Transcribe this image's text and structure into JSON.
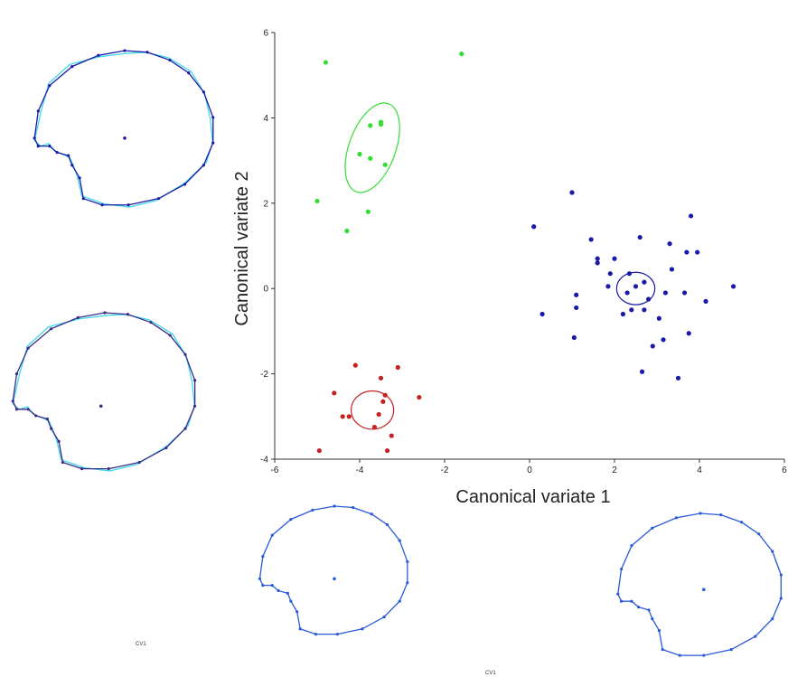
{
  "chart_data": {
    "type": "scatter",
    "xlabel": "Canonical variate 1",
    "ylabel": "Canonical variate 2",
    "xlim": [
      -6,
      6
    ],
    "ylim": [
      -4,
      6
    ],
    "x_ticks": [
      -6,
      -4,
      -2,
      0,
      2,
      4,
      6
    ],
    "y_ticks": [
      -4,
      -2,
      0,
      2,
      4,
      6
    ],
    "grid": false,
    "series": [
      {
        "color": "#33dd33",
        "points": [
          [
            -4.8,
            5.3
          ],
          [
            -1.6,
            5.5
          ],
          [
            -3.5,
            3.9
          ],
          [
            -3.5,
            3.85
          ],
          [
            -3.75,
            3.82
          ],
          [
            -4.0,
            3.15
          ],
          [
            -3.75,
            3.05
          ],
          [
            -3.4,
            2.9
          ],
          [
            -5.0,
            2.05
          ],
          [
            -3.8,
            1.8
          ],
          [
            -4.3,
            1.35
          ]
        ],
        "ellipse": {
          "center": [
            -3.7,
            3.3
          ],
          "rx": 0.55,
          "ry": 1.1,
          "angle_deg": 20
        }
      },
      {
        "color": "#1a1aa8",
        "points": [
          [
            1.0,
            2.25
          ],
          [
            3.8,
            1.7
          ],
          [
            0.1,
            1.45
          ],
          [
            1.45,
            1.15
          ],
          [
            2.6,
            1.2
          ],
          [
            3.3,
            1.05
          ],
          [
            3.7,
            0.85
          ],
          [
            3.95,
            0.85
          ],
          [
            1.6,
            0.7
          ],
          [
            2.0,
            0.7
          ],
          [
            1.6,
            0.6
          ],
          [
            3.35,
            0.45
          ],
          [
            1.9,
            0.35
          ],
          [
            2.35,
            0.35
          ],
          [
            2.7,
            0.15
          ],
          [
            1.85,
            0.05
          ],
          [
            4.8,
            0.05
          ],
          [
            2.5,
            0.05
          ],
          [
            2.3,
            -0.1
          ],
          [
            3.2,
            -0.1
          ],
          [
            3.65,
            -0.1
          ],
          [
            1.1,
            -0.15
          ],
          [
            2.8,
            -0.25
          ],
          [
            4.15,
            -0.3
          ],
          [
            1.1,
            -0.45
          ],
          [
            2.4,
            -0.5
          ],
          [
            2.7,
            -0.5
          ],
          [
            2.2,
            -0.6
          ],
          [
            0.3,
            -0.6
          ],
          [
            3.05,
            -0.7
          ],
          [
            3.75,
            -1.05
          ],
          [
            1.05,
            -1.15
          ],
          [
            3.15,
            -1.2
          ],
          [
            2.9,
            -1.35
          ],
          [
            2.65,
            -1.95
          ],
          [
            3.5,
            -2.1
          ]
        ],
        "ellipse": {
          "center": [
            2.5,
            0.0
          ],
          "rx": 0.45,
          "ry": 0.38,
          "angle_deg": 0
        }
      },
      {
        "color": "#c42222",
        "points": [
          [
            -4.1,
            -1.8
          ],
          [
            -3.1,
            -1.85
          ],
          [
            -3.5,
            -2.1
          ],
          [
            -4.6,
            -2.45
          ],
          [
            -2.6,
            -2.55
          ],
          [
            -3.4,
            -2.5
          ],
          [
            -3.45,
            -2.65
          ],
          [
            -4.4,
            -3.0
          ],
          [
            -4.25,
            -3.0
          ],
          [
            -3.55,
            -2.95
          ],
          [
            -3.65,
            -3.25
          ],
          [
            -3.25,
            -3.45
          ],
          [
            -4.95,
            -3.8
          ],
          [
            -3.35,
            -3.8
          ]
        ],
        "ellipse": {
          "center": [
            -3.7,
            -2.85
          ],
          "rx": 0.5,
          "ry": 0.45,
          "angle_deg": 0
        }
      }
    ]
  },
  "outlines": {
    "top_left": {
      "color": "#1a1aa8",
      "overlay_color": "#40d8e8"
    },
    "mid_left": {
      "color": "#3a2a8a",
      "overlay_color": "#40d8e8"
    },
    "bottom_center": {
      "color": "#2a5ad8"
    },
    "bottom_right": {
      "color": "#2a5ad8"
    }
  },
  "captions": {
    "cv1_left": "CV1",
    "cv1_center": "CV1"
  }
}
